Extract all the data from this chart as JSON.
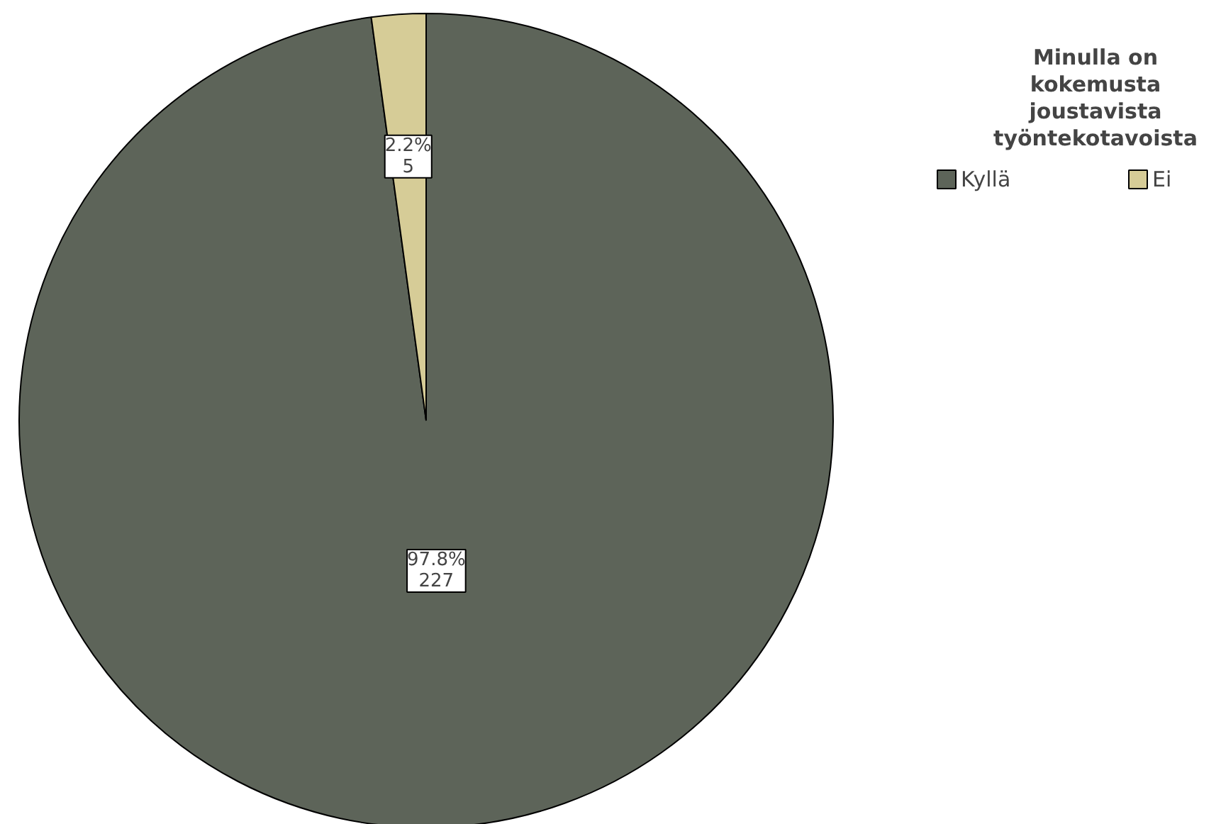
{
  "chart_data": {
    "type": "pie",
    "legend_title": "Minulla on kokemusta joustavista työntekotavoista",
    "categories": [
      "Kyllä",
      "Ei"
    ],
    "values": [
      227,
      5
    ],
    "colors": [
      "#5d6459",
      "#d6cc97"
    ],
    "value_labels": [
      "97.8%\n227",
      "2.2%\n5"
    ],
    "legend": "top right"
  }
}
